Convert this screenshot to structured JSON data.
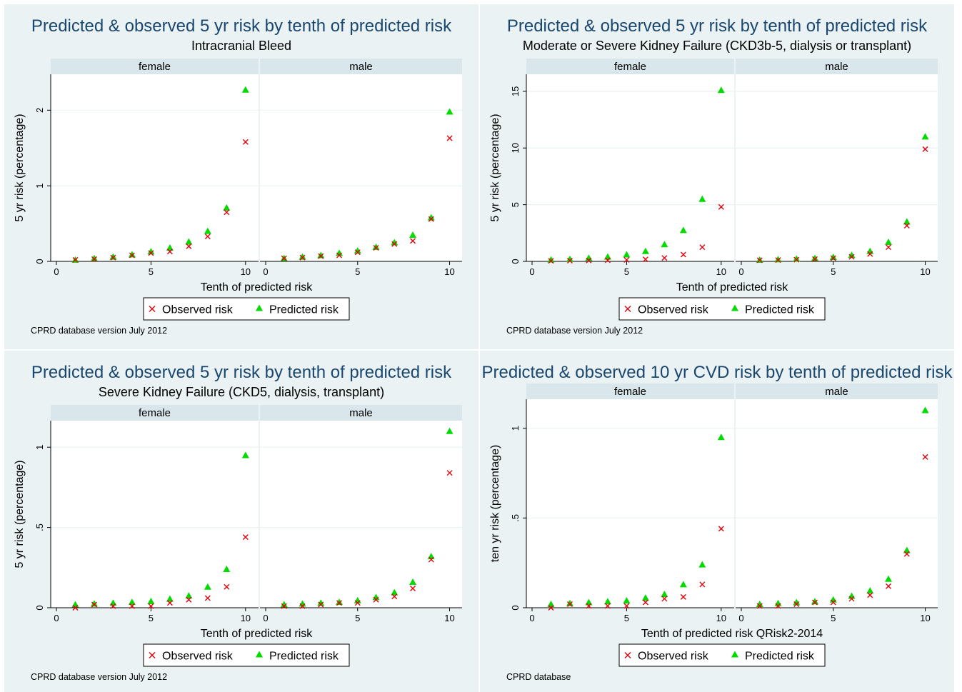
{
  "figure": {
    "panels_layout": "2x2 grid",
    "colors": {
      "background": "#eaf2f3",
      "plot_background": "#ffffff",
      "strip_background": "#d9e6eb",
      "gridline": "#eaf2f3",
      "title": "#1a476f",
      "observed": "#e8000b",
      "predicted": "#00dc00"
    }
  },
  "chart_data": [
    {
      "type": "scatter",
      "title": "Predicted & observed 5 yr risk by tenth of predicted risk",
      "subtitle": "Intracranial Bleed",
      "xlabel": "Tenth of predicted risk",
      "ylabel": "5 yr risk (percentage)",
      "note": "CPRD database version July 2012",
      "xlim": [
        0,
        10
      ],
      "xticks": [
        "0",
        "5",
        "10"
      ],
      "ylim": [
        0,
        2.4
      ],
      "yticks": [
        {
          "value": 0,
          "label": "0"
        },
        {
          "value": 1,
          "label": "1"
        },
        {
          "value": 2,
          "label": "2"
        }
      ],
      "grid": true,
      "legend": {
        "placement": "bottom",
        "items": [
          "Observed risk",
          "Predicted risk"
        ]
      },
      "facets": [
        {
          "label": "female",
          "x": [
            1,
            2,
            3,
            4,
            5,
            6,
            7,
            8,
            9,
            10
          ],
          "series": [
            {
              "name": "Observed risk",
              "marker": "x",
              "values": [
                0.02,
                0.03,
                0.05,
                0.08,
                0.11,
                0.13,
                0.2,
                0.33,
                0.65,
                1.58
              ]
            },
            {
              "name": "Predicted risk",
              "marker": "triangle",
              "values": [
                0.02,
                0.04,
                0.06,
                0.09,
                0.13,
                0.18,
                0.26,
                0.4,
                0.71,
                2.27
              ]
            }
          ]
        },
        {
          "label": "male",
          "x": [
            1,
            2,
            3,
            4,
            5,
            6,
            7,
            8,
            9,
            10
          ],
          "series": [
            {
              "name": "Observed risk",
              "marker": "x",
              "values": [
                0.04,
                0.05,
                0.07,
                0.08,
                0.12,
                0.18,
                0.23,
                0.27,
                0.56,
                1.63
              ]
            },
            {
              "name": "Predicted risk",
              "marker": "triangle",
              "values": [
                0.04,
                0.06,
                0.08,
                0.11,
                0.14,
                0.19,
                0.25,
                0.35,
                0.58,
                1.98
              ]
            }
          ]
        }
      ]
    },
    {
      "type": "scatter",
      "title": "Predicted & observed 5 yr risk by tenth of predicted risk",
      "subtitle": "Moderate or Severe Kidney Failure (CKD3b-5, dialysis or transplant)",
      "xlabel": "Tenth of predicted risk",
      "ylabel": "5 yr risk (percentage)",
      "note": "CPRD database version July 2012",
      "xlim": [
        0,
        10
      ],
      "xticks": [
        "0",
        "5",
        "10"
      ],
      "ylim": [
        0,
        16
      ],
      "yticks": [
        {
          "value": 0,
          "label": "0"
        },
        {
          "value": 5,
          "label": "5"
        },
        {
          "value": 10,
          "label": "10"
        },
        {
          "value": 15,
          "label": "15"
        }
      ],
      "grid": true,
      "legend": {
        "placement": "bottom",
        "items": [
          "Observed risk",
          "Predicted risk"
        ]
      },
      "facets": [
        {
          "label": "female",
          "x": [
            1,
            2,
            3,
            4,
            5,
            6,
            7,
            8,
            9,
            10
          ],
          "series": [
            {
              "name": "Observed risk",
              "marker": "x",
              "values": [
                0.05,
                0.06,
                0.08,
                0.1,
                0.13,
                0.18,
                0.3,
                0.6,
                1.25,
                4.8
              ]
            },
            {
              "name": "Predicted risk",
              "marker": "triangle",
              "values": [
                0.15,
                0.2,
                0.3,
                0.4,
                0.6,
                0.9,
                1.5,
                2.75,
                5.5,
                15.1
              ]
            }
          ]
        },
        {
          "label": "male",
          "x": [
            1,
            2,
            3,
            4,
            5,
            6,
            7,
            8,
            9,
            10
          ],
          "series": [
            {
              "name": "Observed risk",
              "marker": "x",
              "values": [
                0.1,
                0.12,
                0.15,
                0.2,
                0.28,
                0.4,
                0.65,
                1.25,
                3.15,
                9.9
              ]
            },
            {
              "name": "Predicted risk",
              "marker": "triangle",
              "values": [
                0.13,
                0.17,
                0.22,
                0.28,
                0.38,
                0.55,
                0.9,
                1.7,
                3.5,
                11.0
              ]
            }
          ]
        }
      ]
    },
    {
      "type": "scatter",
      "title": "Predicted & observed 5 yr risk by tenth of predicted risk",
      "subtitle": "Severe Kidney Failure (CKD5, dialysis, transplant)",
      "xlabel": "Tenth of predicted risk",
      "ylabel": "5 yr risk (percentage)",
      "note": "CPRD database version July 2012",
      "xlim": [
        0,
        10
      ],
      "xticks": [
        "0",
        "5",
        "10"
      ],
      "ylim": [
        0,
        1.13
      ],
      "yticks": [
        {
          "value": 0,
          "label": "0"
        },
        {
          "value": 0.5,
          "label": ".5"
        },
        {
          "value": 1,
          "label": "1"
        }
      ],
      "grid": true,
      "legend": {
        "placement": "bottom",
        "items": [
          "Observed risk",
          "Predicted risk"
        ]
      },
      "facets": [
        {
          "label": "female",
          "x": [
            1,
            2,
            3,
            4,
            5,
            6,
            7,
            8,
            9,
            10
          ],
          "series": [
            {
              "name": "Observed risk",
              "marker": "x",
              "values": [
                0.0,
                0.02,
                0.01,
                0.01,
                0.01,
                0.03,
                0.05,
                0.06,
                0.13,
                0.44
              ]
            },
            {
              "name": "Predicted risk",
              "marker": "triangle",
              "values": [
                0.02,
                0.025,
                0.03,
                0.035,
                0.04,
                0.055,
                0.075,
                0.13,
                0.24,
                0.95
              ]
            }
          ]
        },
        {
          "label": "male",
          "x": [
            1,
            2,
            3,
            4,
            5,
            6,
            7,
            8,
            9,
            10
          ],
          "series": [
            {
              "name": "Observed risk",
              "marker": "x",
              "values": [
                0.01,
                0.01,
                0.02,
                0.03,
                0.03,
                0.05,
                0.07,
                0.12,
                0.3,
                0.84
              ]
            },
            {
              "name": "Predicted risk",
              "marker": "triangle",
              "values": [
                0.02,
                0.025,
                0.03,
                0.035,
                0.045,
                0.065,
                0.095,
                0.16,
                0.32,
                1.1
              ]
            }
          ]
        }
      ]
    },
    {
      "type": "scatter",
      "title": "Predicted & observed 10 yr CVD risk by tenth of predicted risk",
      "subtitle": "",
      "xlabel": "Tenth of predicted risk QRisk2-2014",
      "ylabel": "ten yr risk (percentage)",
      "note": "CPRD database",
      "xlim": [
        0,
        10
      ],
      "xticks": [
        "0",
        "5",
        "10"
      ],
      "ylim": [
        0,
        1.13
      ],
      "yticks": [
        {
          "value": 0,
          "label": "0"
        },
        {
          "value": 0.5,
          "label": ".5"
        },
        {
          "value": 1,
          "label": "1"
        }
      ],
      "grid": true,
      "legend": {
        "placement": "bottom",
        "items": [
          "Observed risk",
          "Predicted risk"
        ]
      },
      "facets": [
        {
          "label": "female",
          "x": [
            1,
            2,
            3,
            4,
            5,
            6,
            7,
            8,
            9,
            10
          ],
          "series": [
            {
              "name": "Observed risk",
              "marker": "x",
              "values": [
                0.0,
                0.02,
                0.01,
                0.01,
                0.01,
                0.03,
                0.05,
                0.06,
                0.13,
                0.44
              ]
            },
            {
              "name": "Predicted risk",
              "marker": "triangle",
              "values": [
                0.02,
                0.025,
                0.03,
                0.035,
                0.04,
                0.055,
                0.075,
                0.13,
                0.24,
                0.95
              ]
            }
          ]
        },
        {
          "label": "male",
          "x": [
            1,
            2,
            3,
            4,
            5,
            6,
            7,
            8,
            9,
            10
          ],
          "series": [
            {
              "name": "Observed risk",
              "marker": "x",
              "values": [
                0.01,
                0.01,
                0.02,
                0.03,
                0.03,
                0.05,
                0.07,
                0.12,
                0.3,
                0.84
              ]
            },
            {
              "name": "Predicted risk",
              "marker": "triangle",
              "values": [
                0.02,
                0.025,
                0.03,
                0.035,
                0.045,
                0.065,
                0.095,
                0.16,
                0.32,
                1.1
              ]
            }
          ]
        }
      ]
    }
  ]
}
